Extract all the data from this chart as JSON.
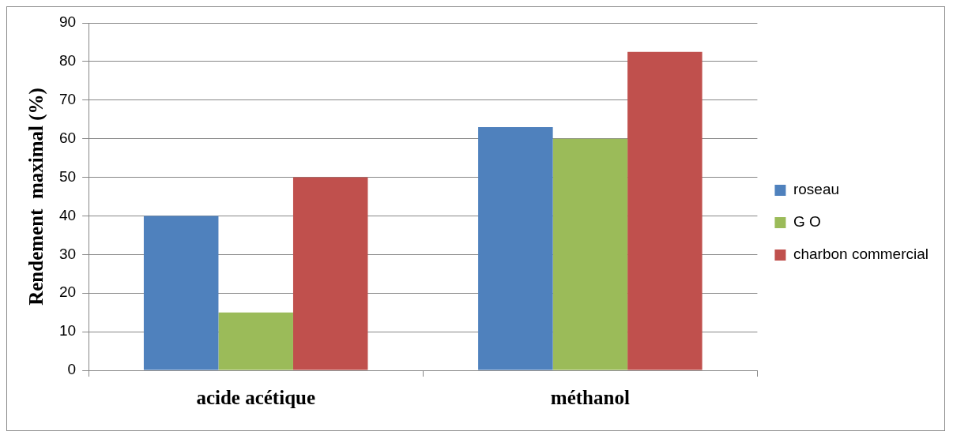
{
  "chart_data": {
    "type": "bar",
    "ylabel": "Rendement  maximal (%)",
    "categories": [
      "acide acétique",
      "méthanol"
    ],
    "series": [
      {
        "name": "roseau",
        "color": "#4f81bd",
        "values": [
          40,
          63
        ]
      },
      {
        "name": "G O",
        "color": "#9bbb59",
        "values": [
          15,
          60
        ]
      },
      {
        "name": "charbon commercial",
        "color": "#c0504d",
        "values": [
          50,
          82.5
        ]
      }
    ],
    "ylim": [
      0,
      90
    ],
    "yticks": [
      0,
      10,
      20,
      30,
      40,
      50,
      60,
      70,
      80,
      90
    ],
    "grid": "y",
    "legend": "right"
  }
}
